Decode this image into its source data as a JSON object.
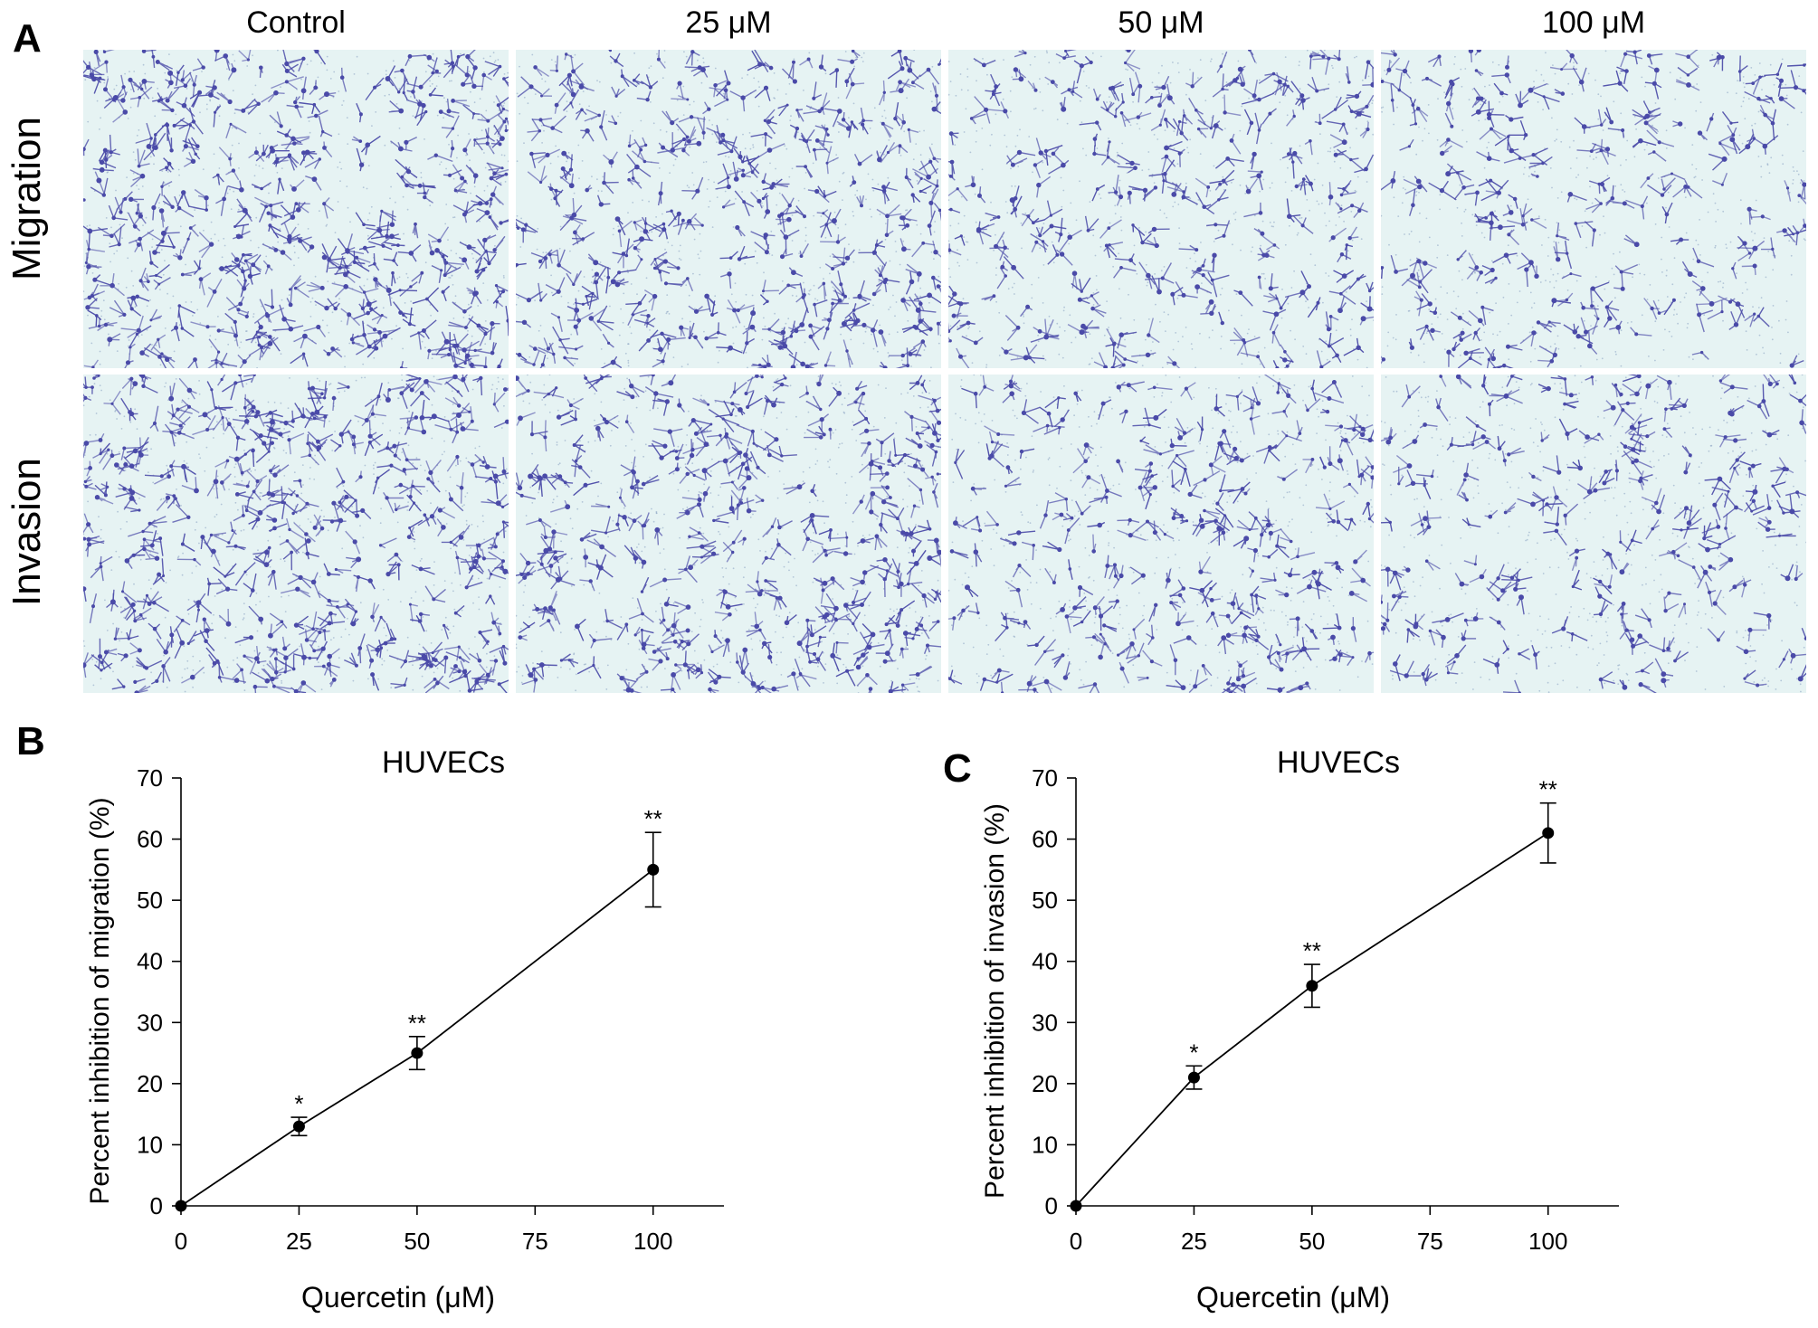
{
  "panel_A": {
    "letter": "A",
    "column_labels": [
      "Control",
      "25 μM",
      "50 μM",
      "100 μM"
    ],
    "row_labels": [
      "Migration",
      "Invasion"
    ],
    "image_colors": {
      "background": "#e6f3f3",
      "cell": "#4a4aa8"
    }
  },
  "panel_B": {
    "letter": "B"
  },
  "panel_C": {
    "letter": "C"
  },
  "chart_data": [
    {
      "type": "line",
      "title": "HUVECs",
      "xlabel": "Quercetin (μM)",
      "ylabel": "Percent inhibition of migration (%)",
      "x": [
        0,
        25,
        50,
        100
      ],
      "series": [
        {
          "values": [
            0,
            13,
            25,
            55
          ],
          "error": [
            0,
            1.5,
            2.7,
            6.1
          ],
          "significance": [
            "",
            "*",
            "**",
            "**"
          ]
        }
      ],
      "xlim": [
        0,
        115
      ],
      "ylim": [
        0,
        70
      ],
      "xticks": [
        0,
        25,
        50,
        75,
        100
      ],
      "yticks": [
        0,
        10,
        20,
        30,
        40,
        50,
        60,
        70
      ]
    },
    {
      "type": "line",
      "title": "HUVECs",
      "xlabel": "Quercetin (μM)",
      "ylabel": "Percent inhibition of invasion (%)",
      "x": [
        0,
        25,
        50,
        100
      ],
      "series": [
        {
          "values": [
            0,
            21,
            36,
            61
          ],
          "error": [
            0,
            1.9,
            3.5,
            4.9
          ],
          "significance": [
            "",
            "*",
            "**",
            "**"
          ]
        }
      ],
      "xlim": [
        0,
        115
      ],
      "ylim": [
        0,
        70
      ],
      "xticks": [
        0,
        25,
        50,
        75,
        100
      ],
      "yticks": [
        0,
        10,
        20,
        30,
        40,
        50,
        60,
        70
      ]
    }
  ]
}
